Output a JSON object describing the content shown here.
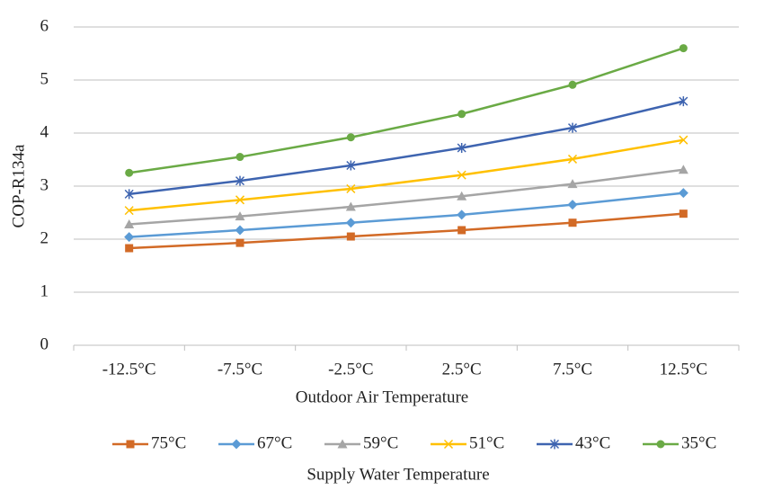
{
  "chart_data": {
    "type": "line",
    "x_label": "Outdoor Air Temperature",
    "y_label": "COP-R134a",
    "legend_title": "Supply Water Temperature",
    "categories": [
      "-12.5°C",
      "-7.5°C",
      "-2.5°C",
      "2.5°C",
      "7.5°C",
      "12.5°C"
    ],
    "ylim": [
      0,
      6
    ],
    "yticks": [
      0,
      1,
      2,
      3,
      4,
      5,
      6
    ],
    "grid": true,
    "legend": "bottom",
    "series": [
      {
        "name": "75°C",
        "color": "#d26a26",
        "marker": "square",
        "values": [
          1.83,
          1.93,
          2.05,
          2.17,
          2.31,
          2.48
        ]
      },
      {
        "name": "67°C",
        "color": "#5b9bd5",
        "marker": "diamond",
        "values": [
          2.04,
          2.17,
          2.31,
          2.46,
          2.65,
          2.87
        ]
      },
      {
        "name": "59°C",
        "color": "#a5a5a5",
        "marker": "triangle",
        "values": [
          2.28,
          2.43,
          2.61,
          2.81,
          3.04,
          3.31
        ]
      },
      {
        "name": "51°C",
        "color": "#ffc000",
        "marker": "x",
        "values": [
          2.54,
          2.74,
          2.95,
          3.21,
          3.51,
          3.87
        ]
      },
      {
        "name": "43°C",
        "color": "#3e64b0",
        "marker": "star",
        "values": [
          2.85,
          3.1,
          3.39,
          3.72,
          4.1,
          4.6
        ]
      },
      {
        "name": "35°C",
        "color": "#6aaa45",
        "marker": "circle",
        "values": [
          3.25,
          3.55,
          3.92,
          4.36,
          4.91,
          5.6
        ]
      }
    ]
  }
}
